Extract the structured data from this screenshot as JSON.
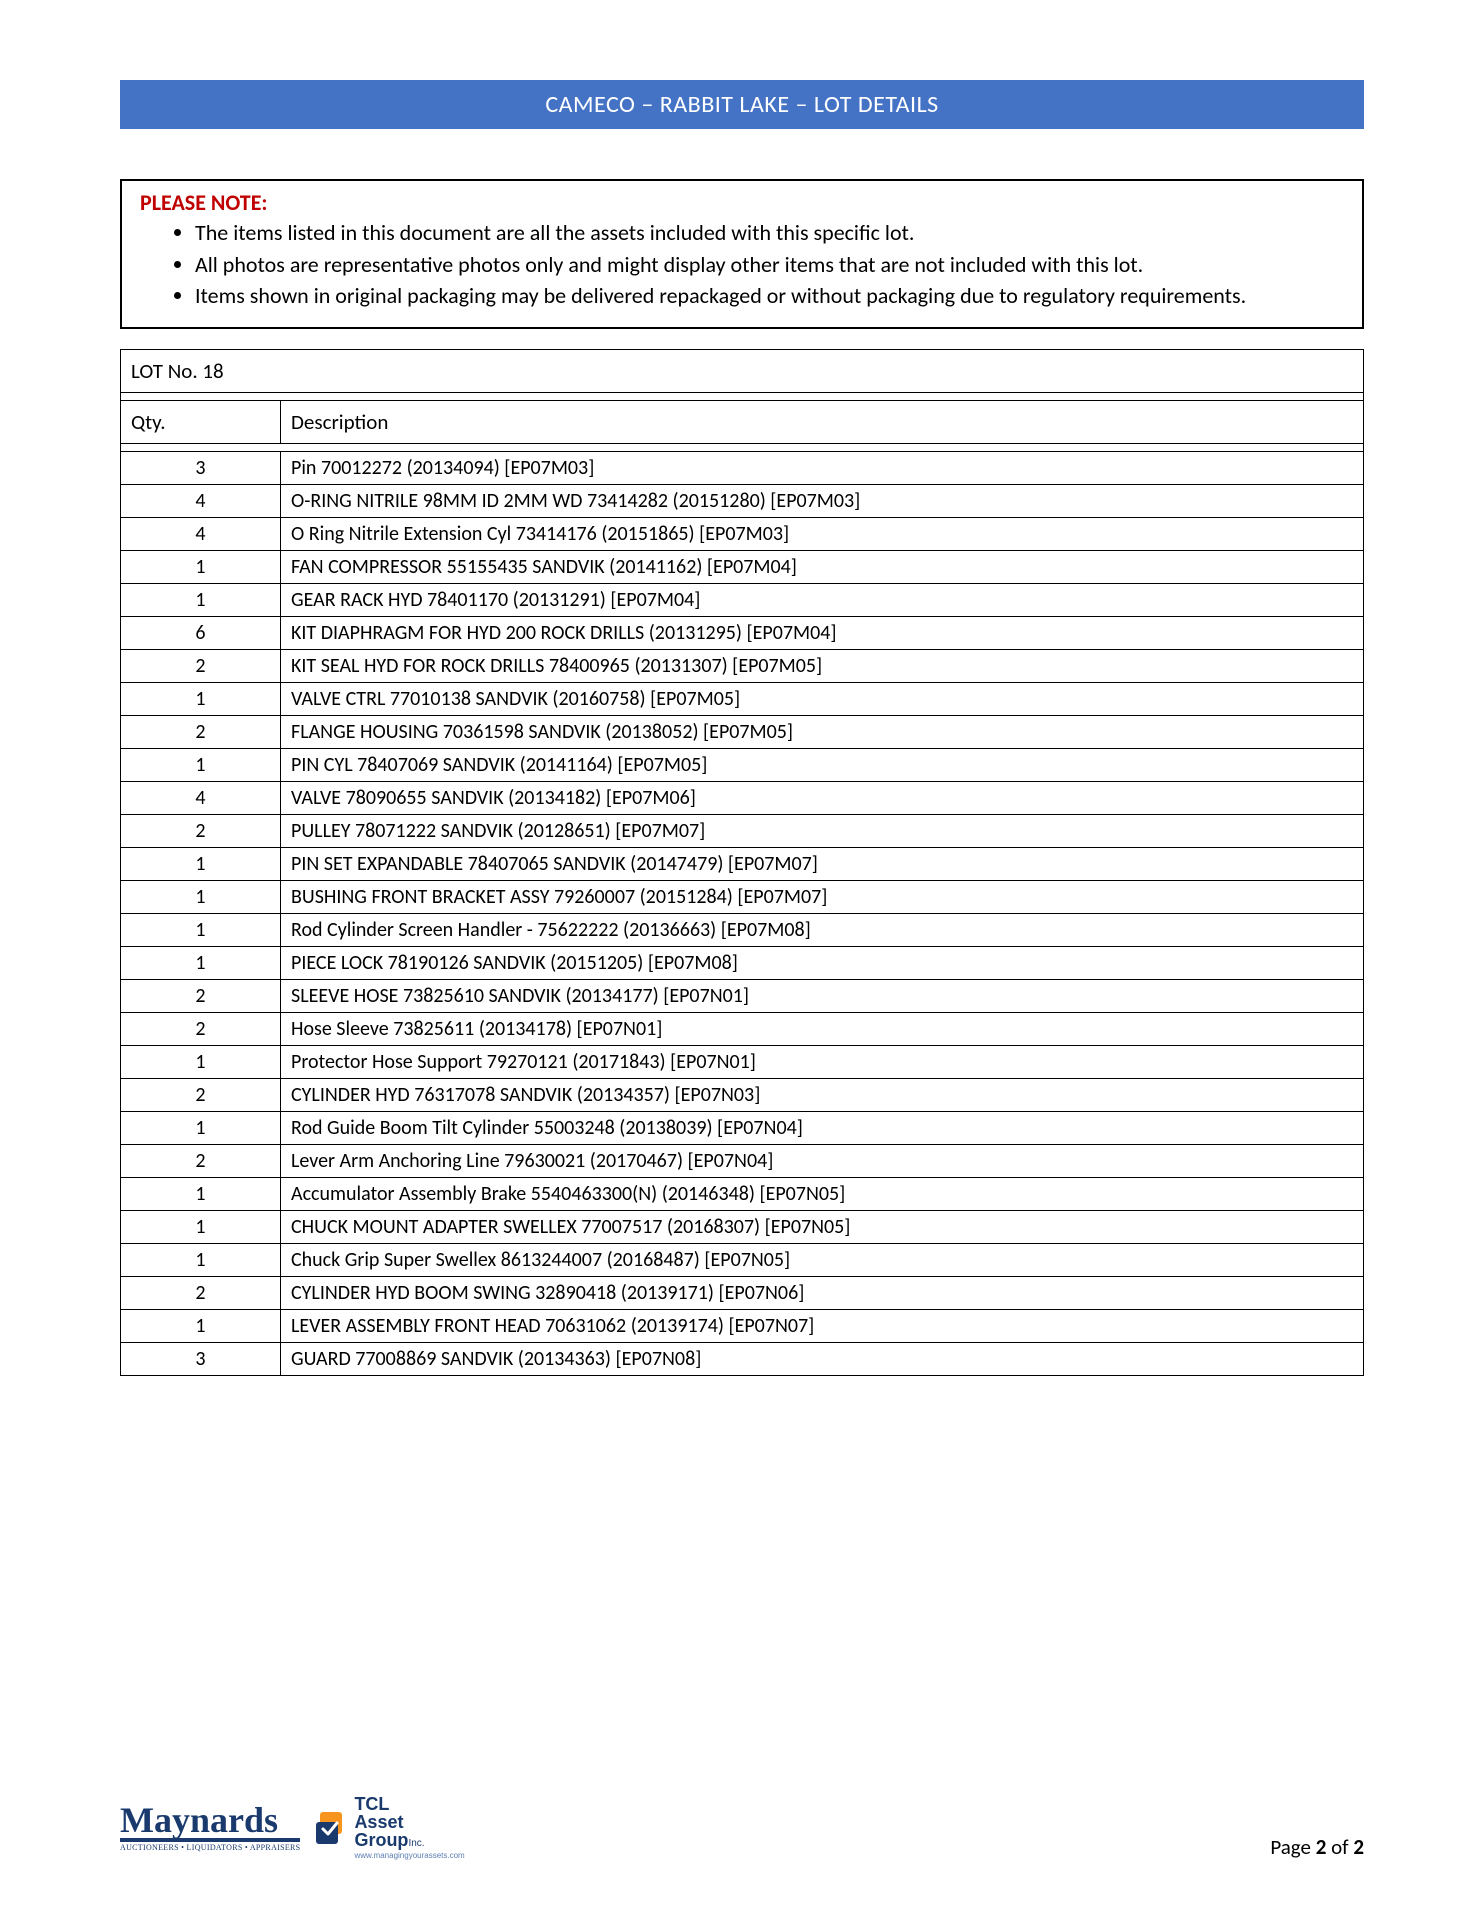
{
  "header": {
    "title": "CAMECO – RABBIT LAKE – LOT DETAILS",
    "bg_color": "#4472c4",
    "text_color": "#ffffff"
  },
  "note": {
    "title": "PLEASE NOTE:",
    "title_color": "#c00000",
    "items": [
      "The items listed in this document are all the assets included with this specific lot.",
      "All photos are representative photos only and might display other items that are not included with this lot.",
      "Items shown in original packaging may be delivered repackaged or without packaging due to regulatory requirements."
    ]
  },
  "lot": {
    "lot_label": "LOT No. 18",
    "columns": {
      "qty": "Qty.",
      "desc": "Description"
    },
    "rows": [
      {
        "qty": "3",
        "desc": "Pin 70012272 (20134094) [EP07M03]"
      },
      {
        "qty": "4",
        "desc": "O-RING NITRILE 98MM ID 2MM WD 73414282 (20151280) [EP07M03]"
      },
      {
        "qty": "4",
        "desc": "O Ring Nitrile Extension Cyl 73414176 (20151865) [EP07M03]"
      },
      {
        "qty": "1",
        "desc": "FAN COMPRESSOR 55155435 SANDVIK (20141162) [EP07M04]"
      },
      {
        "qty": "1",
        "desc": "GEAR RACK HYD 78401170 (20131291) [EP07M04]"
      },
      {
        "qty": "6",
        "desc": "KIT DIAPHRAGM FOR HYD 200 ROCK DRILLS (20131295) [EP07M04]"
      },
      {
        "qty": "2",
        "desc": "KIT SEAL HYD FOR ROCK DRILLS 78400965 (20131307) [EP07M05]"
      },
      {
        "qty": "1",
        "desc": "VALVE CTRL 77010138 SANDVIK (20160758) [EP07M05]"
      },
      {
        "qty": "2",
        "desc": "FLANGE HOUSING 70361598 SANDVIK (20138052) [EP07M05]"
      },
      {
        "qty": "1",
        "desc": "PIN CYL 78407069 SANDVIK (20141164) [EP07M05]"
      },
      {
        "qty": "4",
        "desc": "VALVE 78090655 SANDVIK (20134182) [EP07M06]"
      },
      {
        "qty": "2",
        "desc": "PULLEY 78071222 SANDVIK (20128651) [EP07M07]"
      },
      {
        "qty": "1",
        "desc": "PIN SET EXPANDABLE 78407065 SANDVIK (20147479) [EP07M07]"
      },
      {
        "qty": "1",
        "desc": "BUSHING FRONT BRACKET ASSY 79260007 (20151284) [EP07M07]"
      },
      {
        "qty": "1",
        "desc": "Rod Cylinder Screen Handler - 75622222 (20136663) [EP07M08]"
      },
      {
        "qty": "1",
        "desc": "PIECE LOCK 78190126 SANDVIK (20151205) [EP07M08]"
      },
      {
        "qty": "2",
        "desc": "SLEEVE HOSE 73825610 SANDVIK (20134177) [EP07N01]"
      },
      {
        "qty": "2",
        "desc": "Hose Sleeve 73825611 (20134178) [EP07N01]"
      },
      {
        "qty": "1",
        "desc": "Protector Hose Support 79270121 (20171843) [EP07N01]"
      },
      {
        "qty": "2",
        "desc": "CYLINDER HYD 76317078 SANDVIK (20134357) [EP07N03]"
      },
      {
        "qty": "1",
        "desc": "Rod Guide Boom Tilt Cylinder 55003248 (20138039) [EP07N04]"
      },
      {
        "qty": "2",
        "desc": "Lever Arm Anchoring Line 79630021 (20170467) [EP07N04]"
      },
      {
        "qty": "1",
        "desc": "Accumulator Assembly Brake 5540463300(N) (20146348) [EP07N05]"
      },
      {
        "qty": "1",
        "desc": "CHUCK MOUNT ADAPTER SWELLEX 77007517 (20168307) [EP07N05]"
      },
      {
        "qty": "1",
        "desc": "Chuck Grip Super Swellex 8613244007 (20168487) [EP07N05]"
      },
      {
        "qty": "2",
        "desc": "CYLINDER HYD BOOM SWING 32890418 (20139171) [EP07N06]"
      },
      {
        "qty": "1",
        "desc": "LEVER ASSEMBLY FRONT HEAD 70631062 (20139174) [EP07N07]"
      },
      {
        "qty": "3",
        "desc": "GUARD 77008869 SANDVIK (20134363) [EP07N08]"
      }
    ]
  },
  "footer": {
    "maynards": {
      "name": "Maynards",
      "tagline": "AUCTIONEERS • LIQUIDATORS • APPRAISERS"
    },
    "tcl": {
      "line1": "TCL",
      "line2": "Asset",
      "line3": "Group",
      "sub": "www.managingyourassets.com"
    },
    "page_label": "Page ",
    "page_current": "2",
    "page_of": " of ",
    "page_total": "2"
  }
}
